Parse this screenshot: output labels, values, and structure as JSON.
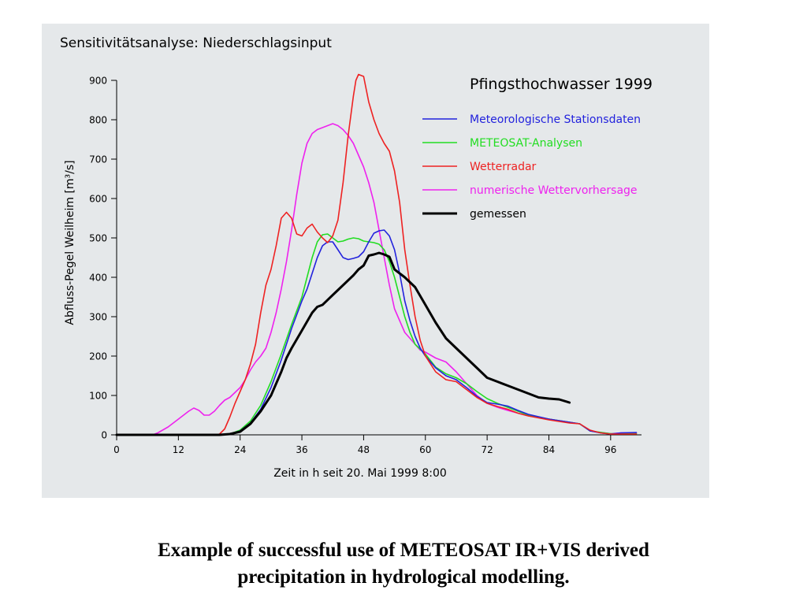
{
  "caption": {
    "line1": "Example of successful use of METEOSAT IR+VIS derived",
    "line2": "precipitation in hydrological modelling."
  },
  "chart_data": {
    "type": "line",
    "title": "Sensitivitätsanalyse: Niederschlagsinput",
    "subtitle": "Pfingsthochwasser 1999",
    "xlabel": "Zeit in h seit 20. Mai 1999 8:00",
    "ylabel": "Abfluss-Pegel Weilheim [m³/s]",
    "xlim": [
      0,
      102
    ],
    "ylim": [
      0,
      900
    ],
    "xticks": [
      0,
      12,
      24,
      36,
      48,
      60,
      72,
      84,
      96
    ],
    "yticks": [
      0,
      100,
      200,
      300,
      400,
      500,
      600,
      700,
      800,
      900
    ],
    "grid": false,
    "legend_position": "top-right",
    "series": [
      {
        "name": "Meteorologische Stationsdaten",
        "color": "#2222dd",
        "points": [
          [
            0,
            0
          ],
          [
            20,
            0
          ],
          [
            22,
            2
          ],
          [
            24,
            10
          ],
          [
            26,
            30
          ],
          [
            28,
            65
          ],
          [
            30,
            120
          ],
          [
            32,
            190
          ],
          [
            34,
            270
          ],
          [
            36,
            340
          ],
          [
            37,
            370
          ],
          [
            38,
            410
          ],
          [
            39,
            450
          ],
          [
            40,
            480
          ],
          [
            41,
            490
          ],
          [
            42,
            490
          ],
          [
            43,
            470
          ],
          [
            44,
            450
          ],
          [
            45,
            445
          ],
          [
            46,
            448
          ],
          [
            47,
            452
          ],
          [
            48,
            465
          ],
          [
            49,
            490
          ],
          [
            50,
            512
          ],
          [
            51,
            518
          ],
          [
            52,
            520
          ],
          [
            53,
            505
          ],
          [
            54,
            470
          ],
          [
            55,
            410
          ],
          [
            56,
            340
          ],
          [
            57,
            290
          ],
          [
            58,
            250
          ],
          [
            59,
            220
          ],
          [
            60,
            200
          ],
          [
            62,
            170
          ],
          [
            64,
            150
          ],
          [
            66,
            140
          ],
          [
            68,
            120
          ],
          [
            70,
            98
          ],
          [
            72,
            82
          ],
          [
            74,
            78
          ],
          [
            76,
            73
          ],
          [
            78,
            62
          ],
          [
            80,
            52
          ],
          [
            84,
            40
          ],
          [
            88,
            32
          ],
          [
            90,
            28
          ],
          [
            92,
            10
          ],
          [
            94,
            5
          ],
          [
            96,
            2
          ],
          [
            98,
            5
          ],
          [
            101,
            6
          ]
        ]
      },
      {
        "name": "METEOSAT-Analysen",
        "color": "#22dd22",
        "points": [
          [
            0,
            0
          ],
          [
            20,
            0
          ],
          [
            22,
            2
          ],
          [
            24,
            12
          ],
          [
            26,
            35
          ],
          [
            28,
            75
          ],
          [
            30,
            135
          ],
          [
            32,
            205
          ],
          [
            34,
            280
          ],
          [
            36,
            350
          ],
          [
            37,
            400
          ],
          [
            38,
            450
          ],
          [
            39,
            490
          ],
          [
            40,
            508
          ],
          [
            41,
            510
          ],
          [
            42,
            500
          ],
          [
            43,
            490
          ],
          [
            44,
            492
          ],
          [
            45,
            497
          ],
          [
            46,
            500
          ],
          [
            47,
            498
          ],
          [
            48,
            492
          ],
          [
            49,
            490
          ],
          [
            50,
            488
          ],
          [
            51,
            484
          ],
          [
            52,
            470
          ],
          [
            53,
            440
          ],
          [
            54,
            400
          ],
          [
            55,
            350
          ],
          [
            56,
            300
          ],
          [
            57,
            260
          ],
          [
            58,
            230
          ],
          [
            60,
            205
          ],
          [
            62,
            172
          ],
          [
            64,
            155
          ],
          [
            66,
            145
          ],
          [
            68,
            130
          ],
          [
            70,
            110
          ],
          [
            72,
            92
          ],
          [
            74,
            80
          ],
          [
            76,
            70
          ],
          [
            78,
            60
          ],
          [
            80,
            50
          ],
          [
            84,
            40
          ],
          [
            88,
            32
          ],
          [
            90,
            28
          ],
          [
            92,
            10
          ],
          [
            96,
            3
          ],
          [
            101,
            3
          ]
        ]
      },
      {
        "name": "Wetterradar",
        "color": "#ee2222",
        "points": [
          [
            0,
            0
          ],
          [
            19,
            0
          ],
          [
            20,
            2
          ],
          [
            21,
            15
          ],
          [
            22,
            45
          ],
          [
            23,
            80
          ],
          [
            24,
            110
          ],
          [
            25,
            140
          ],
          [
            26,
            180
          ],
          [
            27,
            230
          ],
          [
            28,
            310
          ],
          [
            29,
            380
          ],
          [
            30,
            420
          ],
          [
            31,
            480
          ],
          [
            32,
            550
          ],
          [
            33,
            565
          ],
          [
            34,
            550
          ],
          [
            35,
            510
          ],
          [
            36,
            505
          ],
          [
            37,
            525
          ],
          [
            38,
            535
          ],
          [
            39,
            515
          ],
          [
            40,
            500
          ],
          [
            41,
            488
          ],
          [
            42,
            505
          ],
          [
            43,
            545
          ],
          [
            44,
            640
          ],
          [
            45,
            760
          ],
          [
            46,
            860
          ],
          [
            46.5,
            900
          ],
          [
            47,
            915
          ],
          [
            48,
            910
          ],
          [
            49,
            845
          ],
          [
            50,
            800
          ],
          [
            51,
            765
          ],
          [
            52,
            740
          ],
          [
            53,
            720
          ],
          [
            54,
            670
          ],
          [
            55,
            590
          ],
          [
            56,
            470
          ],
          [
            57,
            380
          ],
          [
            58,
            300
          ],
          [
            59,
            240
          ],
          [
            60,
            200
          ],
          [
            62,
            160
          ],
          [
            64,
            140
          ],
          [
            66,
            135
          ],
          [
            68,
            115
          ],
          [
            70,
            95
          ],
          [
            72,
            80
          ],
          [
            74,
            72
          ],
          [
            76,
            65
          ],
          [
            78,
            55
          ],
          [
            80,
            48
          ],
          [
            84,
            38
          ],
          [
            88,
            30
          ],
          [
            90,
            28
          ],
          [
            92,
            12
          ],
          [
            94,
            5
          ],
          [
            96,
            2
          ],
          [
            98,
            2
          ],
          [
            101,
            2
          ]
        ]
      },
      {
        "name": "numerische Wettervorhersage",
        "color": "#ee22ee",
        "points": [
          [
            0,
            0
          ],
          [
            7,
            0
          ],
          [
            8,
            5
          ],
          [
            10,
            20
          ],
          [
            12,
            40
          ],
          [
            14,
            60
          ],
          [
            15,
            68
          ],
          [
            16,
            62
          ],
          [
            17,
            50
          ],
          [
            18,
            50
          ],
          [
            19,
            60
          ],
          [
            20,
            75
          ],
          [
            21,
            88
          ],
          [
            22,
            95
          ],
          [
            24,
            120
          ],
          [
            25,
            140
          ],
          [
            26,
            165
          ],
          [
            27,
            185
          ],
          [
            28,
            200
          ],
          [
            29,
            220
          ],
          [
            30,
            260
          ],
          [
            31,
            310
          ],
          [
            32,
            370
          ],
          [
            33,
            440
          ],
          [
            34,
            520
          ],
          [
            35,
            610
          ],
          [
            36,
            690
          ],
          [
            37,
            740
          ],
          [
            38,
            765
          ],
          [
            39,
            775
          ],
          [
            40,
            780
          ],
          [
            41,
            785
          ],
          [
            42,
            790
          ],
          [
            43,
            785
          ],
          [
            44,
            775
          ],
          [
            45,
            760
          ],
          [
            46,
            740
          ],
          [
            47,
            710
          ],
          [
            48,
            680
          ],
          [
            49,
            640
          ],
          [
            50,
            590
          ],
          [
            51,
            520
          ],
          [
            52,
            450
          ],
          [
            53,
            380
          ],
          [
            54,
            320
          ],
          [
            55,
            290
          ],
          [
            56,
            260
          ],
          [
            57,
            245
          ],
          [
            58,
            230
          ],
          [
            59,
            215
          ],
          [
            60,
            210
          ],
          [
            62,
            195
          ],
          [
            64,
            185
          ],
          [
            66,
            160
          ],
          [
            68,
            130
          ],
          [
            70,
            100
          ],
          [
            72,
            80
          ],
          [
            74,
            70
          ],
          [
            76,
            62
          ],
          [
            78,
            55
          ],
          [
            80,
            48
          ],
          [
            84,
            40
          ],
          [
            88,
            32
          ],
          [
            90,
            28
          ],
          [
            92,
            10
          ],
          [
            94,
            6
          ],
          [
            96,
            3
          ],
          [
            98,
            5
          ],
          [
            101,
            5
          ]
        ]
      },
      {
        "name": "gemessen",
        "color": "#000000",
        "points": [
          [
            0,
            0
          ],
          [
            20,
            0
          ],
          [
            22,
            2
          ],
          [
            24,
            8
          ],
          [
            26,
            28
          ],
          [
            28,
            60
          ],
          [
            30,
            100
          ],
          [
            31,
            130
          ],
          [
            32,
            160
          ],
          [
            33,
            195
          ],
          [
            34,
            220
          ],
          [
            36,
            265
          ],
          [
            38,
            310
          ],
          [
            39,
            325
          ],
          [
            40,
            330
          ],
          [
            42,
            355
          ],
          [
            44,
            380
          ],
          [
            46,
            405
          ],
          [
            47,
            420
          ],
          [
            48,
            430
          ],
          [
            49,
            455
          ],
          [
            50,
            458
          ],
          [
            51,
            462
          ],
          [
            52,
            458
          ],
          [
            53,
            452
          ],
          [
            54,
            420
          ],
          [
            56,
            400
          ],
          [
            58,
            375
          ],
          [
            60,
            330
          ],
          [
            62,
            285
          ],
          [
            64,
            245
          ],
          [
            66,
            220
          ],
          [
            68,
            195
          ],
          [
            70,
            170
          ],
          [
            72,
            145
          ],
          [
            74,
            135
          ],
          [
            76,
            125
          ],
          [
            78,
            115
          ],
          [
            80,
            105
          ],
          [
            82,
            95
          ],
          [
            84,
            92
          ],
          [
            86,
            90
          ],
          [
            88,
            82
          ]
        ]
      }
    ]
  }
}
